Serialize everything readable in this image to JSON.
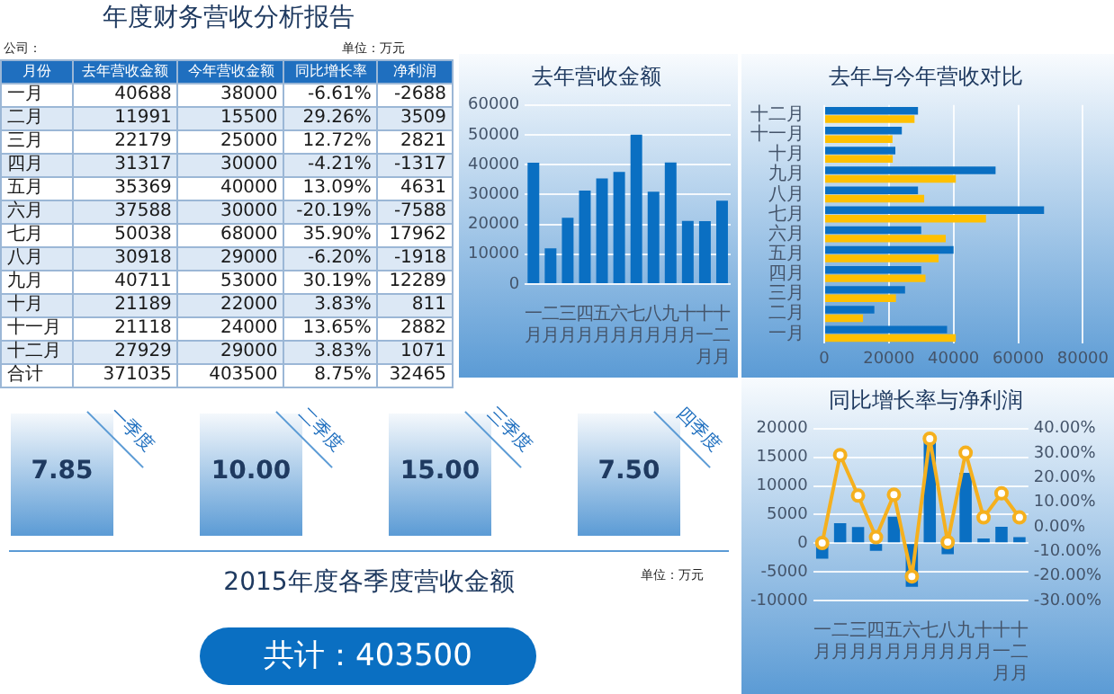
{
  "chart_data": [
    {
      "type": "other",
      "title": "年度财务营收分析报告",
      "annotations": [
        "公司：",
        "单位：万元"
      ],
      "xlabel": "月份",
      "categories": [
        "一月",
        "二月",
        "三月",
        "四月",
        "五月",
        "六月",
        "七月",
        "八月",
        "九月",
        "十月",
        "十一月",
        "十二月",
        "合计"
      ],
      "data_labels": true,
      "series": [
        {
          "name": "去年营收金额",
          "colors": [
            "#ffffff",
            "#dce8f5",
            "#ffffff",
            "#dce8f5",
            "#ffffff",
            "#dce8f5",
            "#ffffff",
            "#dce8f5",
            "#ffffff",
            "#dce8f5",
            "#ffffff",
            "#dce8f5",
            "#ffffff"
          ],
          "values": [
            40688,
            11991,
            22179,
            31317,
            35369,
            37588,
            50038,
            30918,
            40711,
            21189,
            21118,
            27929,
            371035
          ]
        },
        {
          "name": "今年营收金额",
          "colors": [
            "#ffffff",
            "#dce8f5",
            "#ffffff",
            "#dce8f5",
            "#ffffff",
            "#dce8f5",
            "#ffffff",
            "#dce8f5",
            "#ffffff",
            "#dce8f5",
            "#ffffff",
            "#dce8f5",
            "#ffffff"
          ],
          "values": [
            38000,
            15500,
            25000,
            30000,
            40000,
            30000,
            68000,
            29000,
            53000,
            22000,
            24000,
            29000,
            403500
          ]
        },
        {
          "name": "同比增长率",
          "colors": [
            "#ffffff",
            "#dce8f5",
            "#ffffff",
            "#dce8f5",
            "#ffffff",
            "#dce8f5",
            "#ffffff",
            "#dce8f5",
            "#ffffff",
            "#dce8f5",
            "#ffffff",
            "#dce8f5",
            "#ffffff"
          ],
          "values": [
            -6.61,
            29.26,
            12.72,
            -4.21,
            13.09,
            -20.19,
            35.9,
            -6.2,
            30.19,
            3.83,
            13.65,
            3.83,
            8.75
          ],
          "value_labels": [
            "-6.61%",
            "29.26%",
            "12.72%",
            "-4.21%",
            "13.09%",
            "-20.19%",
            "35.90%",
            "-6.20%",
            "30.19%",
            "3.83%",
            "13.65%",
            "3.83%",
            "8.75%"
          ]
        },
        {
          "name": "净利润",
          "colors": [
            "#ffffff",
            "#dce8f5",
            "#ffffff",
            "#dce8f5",
            "#ffffff",
            "#dce8f5",
            "#ffffff",
            "#dce8f5",
            "#ffffff",
            "#dce8f5",
            "#ffffff",
            "#dce8f5",
            "#ffffff"
          ],
          "values": [
            -2688,
            3509,
            2821,
            -1317,
            4631,
            -7588,
            17962,
            -1918,
            12289,
            811,
            2882,
            1071,
            32465
          ]
        }
      ]
    },
    {
      "type": "bar",
      "title": "去年营收金额",
      "categories": [
        "一月",
        "二月",
        "三月",
        "四月",
        "五月",
        "六月",
        "七月",
        "八月",
        "九月",
        "十月",
        "十一月",
        "十二月"
      ],
      "values": [
        40688,
        11991,
        22179,
        31317,
        35369,
        37588,
        50038,
        30918,
        40711,
        21189,
        21118,
        27929
      ],
      "color": "#0a6fc2",
      "ylim": [
        0,
        60000
      ],
      "yticks": [
        0,
        10000,
        20000,
        30000,
        40000,
        50000,
        60000
      ],
      "grid": "y"
    },
    {
      "type": "bar",
      "orientation": "horizontal",
      "title": "去年与今年营收对比",
      "categories": [
        "十二月",
        "十一月",
        "十月",
        "九月",
        "八月",
        "七月",
        "六月",
        "五月",
        "四月",
        "三月",
        "二月",
        "一月"
      ],
      "series": [
        {
          "color": "#0a6fc2",
          "values": [
            29000,
            24000,
            22000,
            53000,
            29000,
            68000,
            30000,
            40000,
            30000,
            25000,
            15500,
            38000
          ]
        },
        {
          "color": "#ffc000",
          "values": [
            27929,
            21118,
            21189,
            40711,
            30918,
            50038,
            37588,
            35369,
            31317,
            22179,
            11991,
            40688
          ]
        }
      ],
      "xlim": [
        0,
        80000
      ],
      "xticks": [
        0,
        20000,
        40000,
        60000,
        80000
      ],
      "grid": "x"
    },
    {
      "type": "bar",
      "title": "同比增长率与净利润",
      "categories": [
        "一月",
        "二月",
        "三月",
        "四月",
        "五月",
        "六月",
        "七月",
        "八月",
        "九月",
        "十月",
        "十一月",
        "十二月"
      ],
      "marker": "circle",
      "series": [
        {
          "type": "bar",
          "color": "#0a6fc2",
          "values": [
            -2688,
            3509,
            2821,
            -1317,
            4631,
            -7588,
            17962,
            -1918,
            12289,
            811,
            2882,
            1071
          ]
        },
        {
          "type": "line",
          "axis": "y2",
          "color": "#f5b01e",
          "values": [
            -6.61,
            29.26,
            12.72,
            -4.21,
            13.09,
            -20.19,
            35.9,
            -6.2,
            30.19,
            3.83,
            13.65,
            3.83
          ]
        }
      ],
      "ylim": [
        -10000,
        20000
      ],
      "yticks": [
        -10000,
        -5000,
        0,
        5000,
        10000,
        15000,
        20000
      ],
      "y2lim": [
        -30,
        40
      ],
      "y2ticks": [
        {
          "value": -30,
          "label": "-30.00%"
        },
        {
          "value": -20,
          "label": "-20.00%"
        },
        {
          "value": -10,
          "label": "-10.00%"
        },
        {
          "value": 0,
          "label": "0.00%"
        },
        {
          "value": 10,
          "label": "10.00%"
        },
        {
          "value": 20,
          "label": "20.00%"
        },
        {
          "value": 30,
          "label": "30.00%"
        },
        {
          "value": 40,
          "label": "40.00%"
        }
      ],
      "grid": "y"
    },
    {
      "type": "other",
      "title": "2015年度各季度营收金额",
      "categories": [
        "一季度",
        "二季度",
        "三季度",
        "四季度"
      ],
      "values": [
        7.85,
        10.0,
        15.0,
        7.5
      ],
      "value_labels": [
        "7.85",
        "10.00",
        "15.00",
        "7.50"
      ],
      "annotations": [
        "单位：万元",
        "共计：403500"
      ]
    }
  ]
}
